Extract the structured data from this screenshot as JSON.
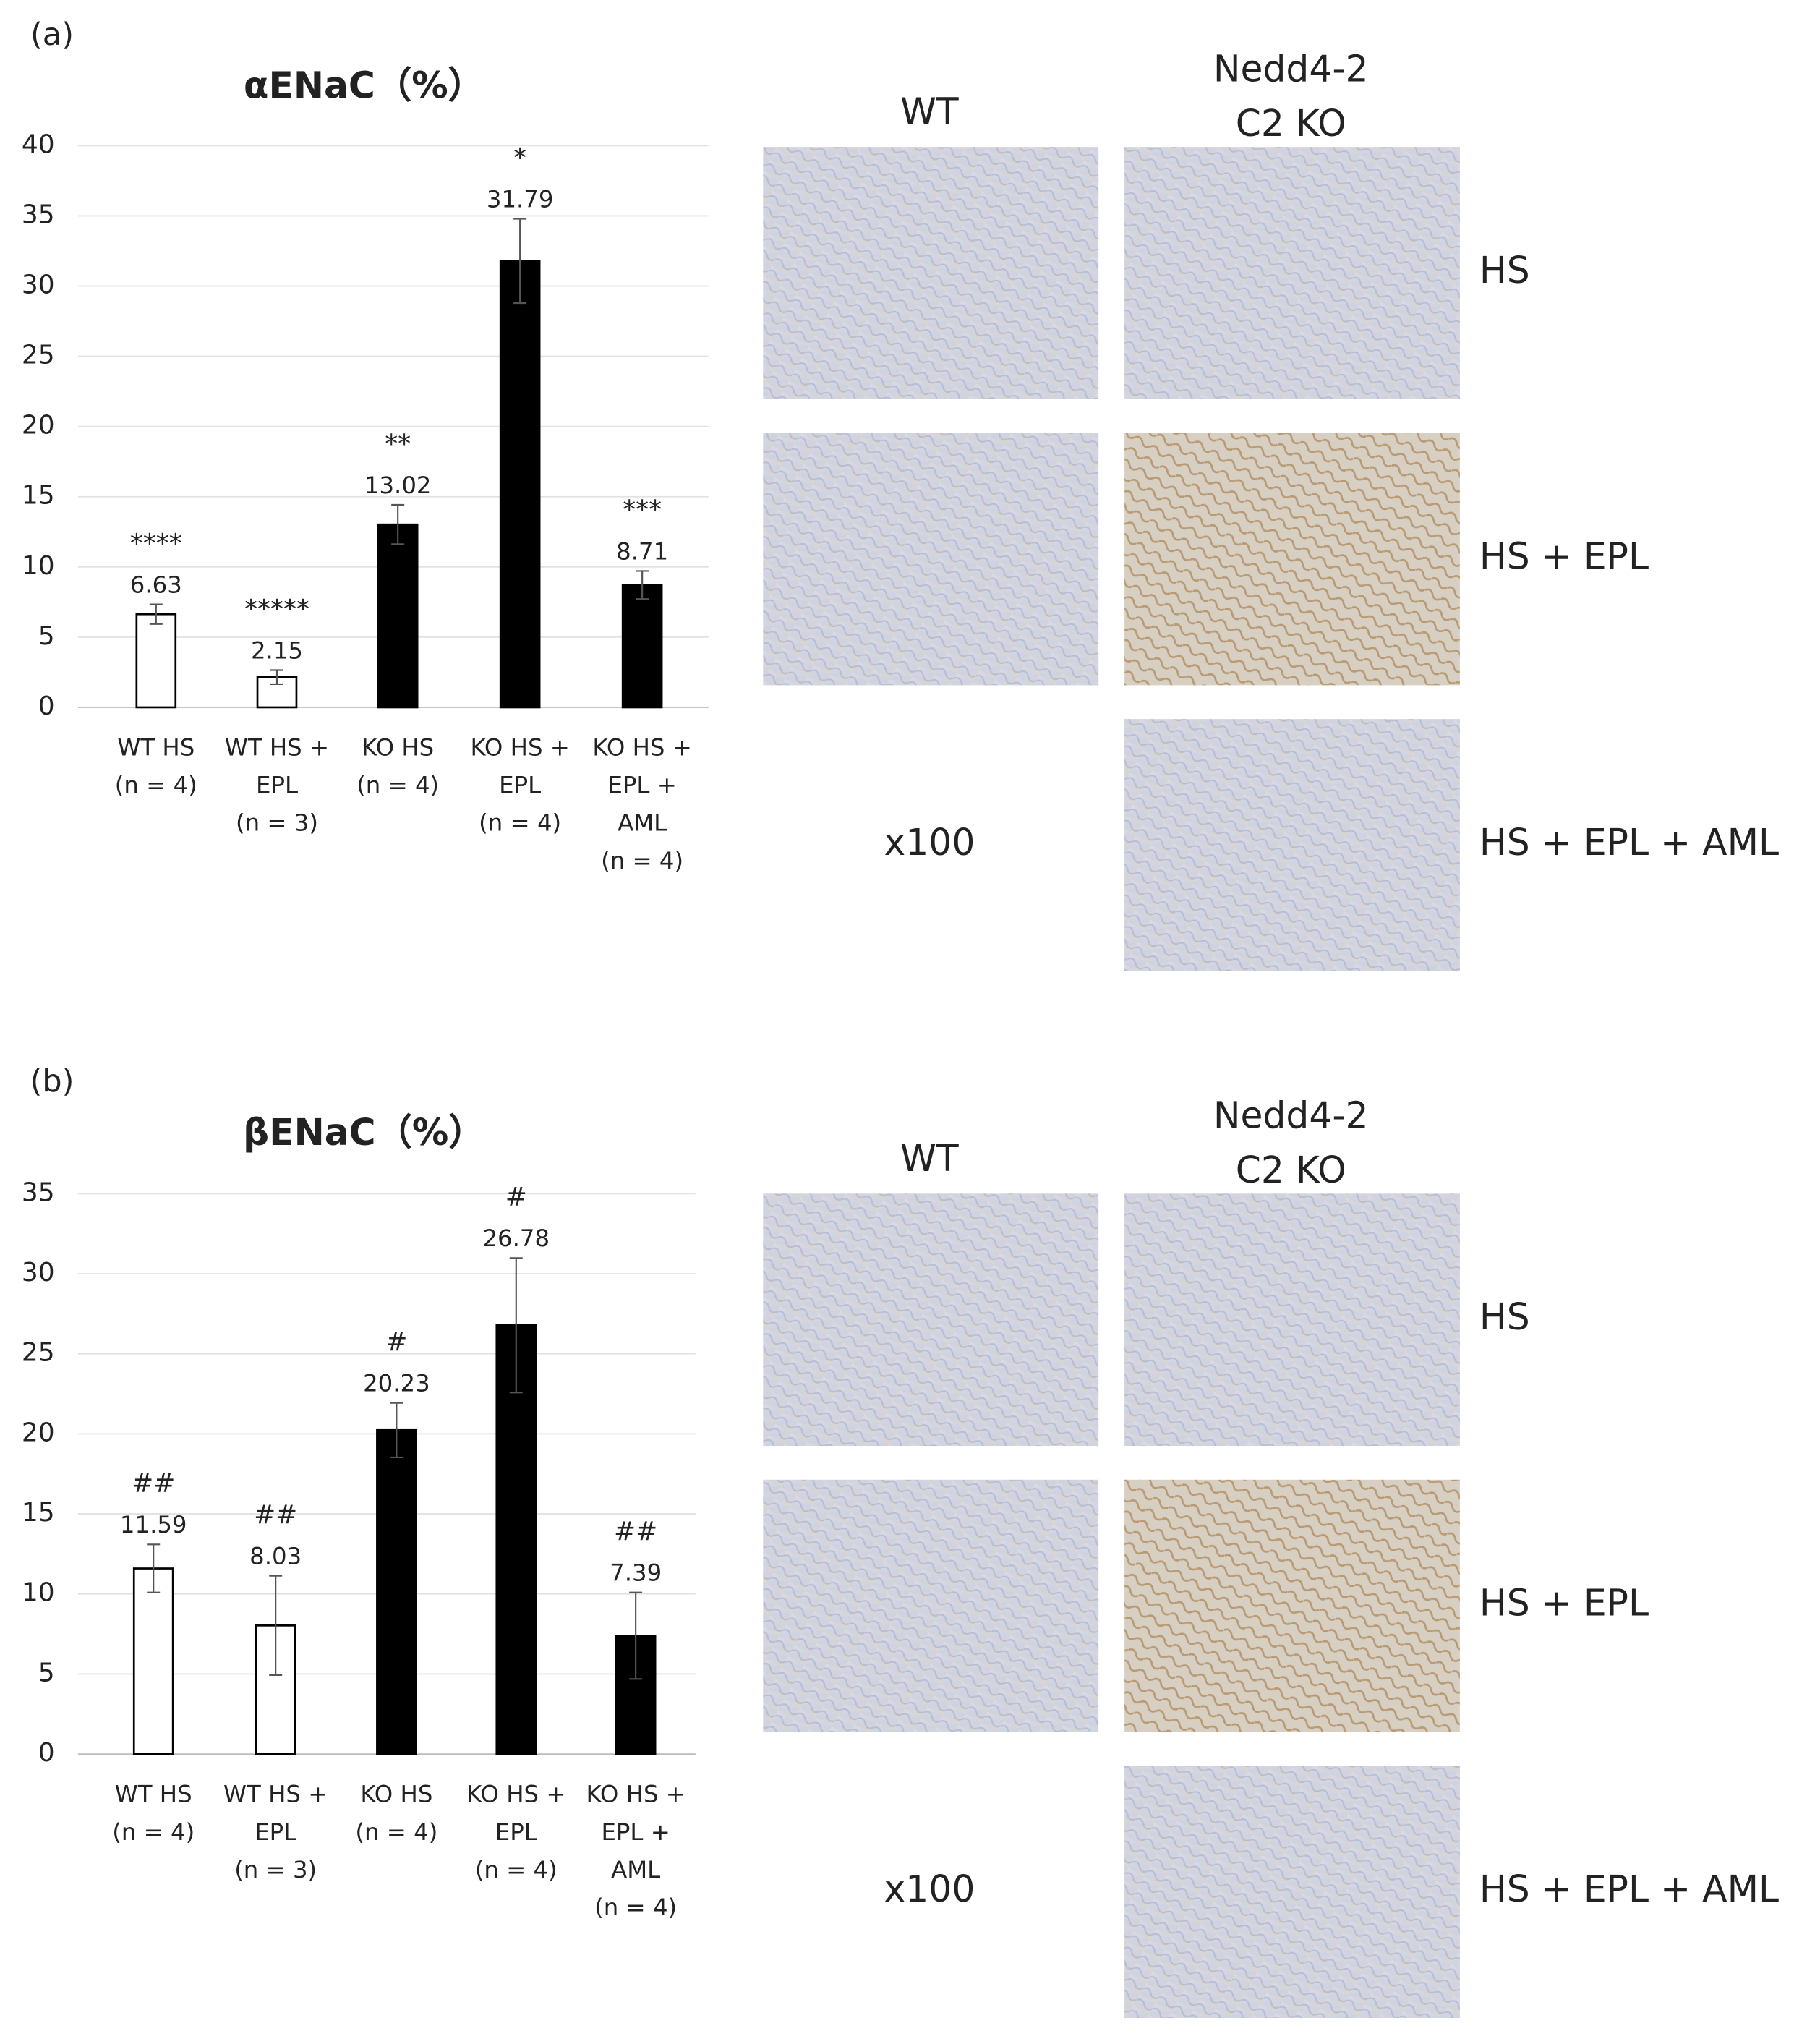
{
  "chart_data": [
    {
      "type": "bar",
      "panel_label": "(a)",
      "title": "αENaC（%）",
      "categories": [
        [
          "WT HS",
          "(n = 4)"
        ],
        [
          "WT HS +",
          "EPL",
          "(n = 3)"
        ],
        [
          "KO HS",
          "(n = 4)"
        ],
        [
          "KO HS +",
          "EPL",
          "(n = 4)"
        ],
        [
          "KO HS +",
          "EPL +",
          "AML",
          "(n = 4)"
        ]
      ],
      "values": [
        6.63,
        2.15,
        13.02,
        31.79,
        8.71
      ],
      "errors": [
        0.7,
        0.5,
        1.4,
        3.0,
        1.0
      ],
      "significance": [
        "****",
        "*****",
        "**",
        "*",
        "***"
      ],
      "colors": [
        "#ffffff",
        "#ffffff",
        "#000000",
        "#000000",
        "#000000"
      ],
      "edgecolor": "#000000",
      "ylim": [
        0,
        40
      ],
      "yticks": [
        0,
        5,
        10,
        15,
        20,
        25,
        30,
        35,
        40
      ],
      "grid": true
    },
    {
      "type": "bar",
      "panel_label": "(b)",
      "title": "βENaC（%）",
      "categories": [
        [
          "WT HS",
          "(n = 4)"
        ],
        [
          "WT HS +",
          "EPL",
          "(n = 3)"
        ],
        [
          "KO HS",
          "(n = 4)"
        ],
        [
          "KO HS +",
          "EPL",
          "(n = 4)"
        ],
        [
          "KO HS +",
          "EPL +",
          "AML",
          "(n = 4)"
        ]
      ],
      "values": [
        11.59,
        8.03,
        20.23,
        26.78,
        7.39
      ],
      "errors": [
        1.5,
        3.1,
        1.7,
        4.2,
        2.7
      ],
      "significance": [
        "##",
        "##",
        "#",
        "#",
        "##"
      ],
      "colors": [
        "#ffffff",
        "#ffffff",
        "#000000",
        "#000000",
        "#000000"
      ],
      "edgecolor": "#000000",
      "ylim": [
        0,
        35
      ],
      "yticks": [
        0,
        5,
        10,
        15,
        20,
        25,
        30,
        35
      ],
      "grid": true
    }
  ],
  "image_panels": [
    {
      "column_headers": [
        [
          "WT"
        ],
        [
          "Nedd4-2",
          "C2 KO"
        ]
      ],
      "row_labels": [
        "HS",
        "HS + EPL",
        "HS + EPL + AML"
      ],
      "magnification": "x100"
    },
    {
      "column_headers": [
        [
          "WT"
        ],
        [
          "Nedd4-2",
          "C2 KO"
        ]
      ],
      "row_labels": [
        "HS",
        "HS + EPL",
        "HS + EPL + AML"
      ],
      "magnification": "x100"
    }
  ]
}
